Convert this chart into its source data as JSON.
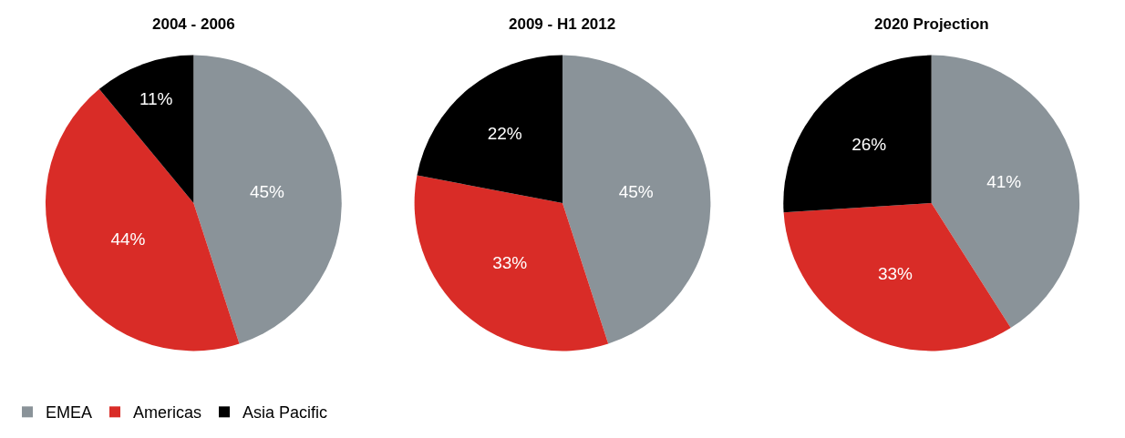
{
  "chart_data": [
    {
      "type": "pie",
      "title": "2004 - 2006",
      "categories": [
        "EMEA",
        "Americas",
        "Asia Pacific"
      ],
      "values": [
        45,
        44,
        11
      ],
      "value_labels": [
        "45%",
        "44%",
        "11%"
      ],
      "colors": [
        "#8a9399",
        "#d92c27",
        "#000000"
      ],
      "legend": "bottom left"
    },
    {
      "type": "pie",
      "title": "2009 - H1 2012",
      "categories": [
        null,
        null,
        null
      ],
      "values": [
        45,
        33,
        22
      ],
      "value_labels": [
        "45%",
        "33%",
        "22%"
      ],
      "colors": [
        "#8a9399",
        "#d92c27",
        "#000000"
      ]
    },
    {
      "type": "pie",
      "title": "2020 Projection",
      "categories": [
        null,
        null,
        null
      ],
      "values": [
        41,
        33,
        26
      ],
      "value_labels": [
        "41%",
        "33%",
        "26%"
      ],
      "colors": [
        "#8a9399",
        "#d92c27",
        "#000000"
      ]
    }
  ]
}
